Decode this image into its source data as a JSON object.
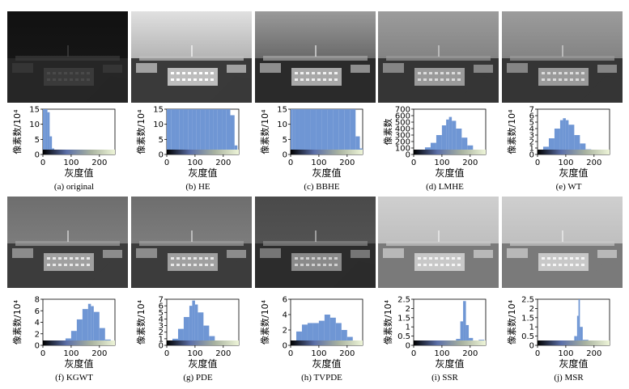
{
  "common": {
    "x_label": "灰度值",
    "x_ticks": [
      0,
      100,
      200
    ],
    "x_range": [
      0,
      255
    ],
    "bar_color": "#6f96d4",
    "gradient": [
      "#000000",
      "#5b6fa8",
      "#a9b3a0",
      "#eef5d8"
    ]
  },
  "panels": [
    {
      "id": "a",
      "caption": "(a) original",
      "ylabel": "像素数/10⁴",
      "ymax": 15,
      "yticks": [
        0,
        5,
        10,
        15
      ],
      "image_style": "dark",
      "chart_data": {
        "type": "histogram",
        "method": "original",
        "bins_x": [
          0,
          8,
          16,
          24,
          32,
          40,
          48,
          56,
          64
        ],
        "values": [
          15,
          15,
          14,
          6,
          2,
          0.8,
          0.5,
          0.3,
          0.2
        ]
      }
    },
    {
      "id": "b",
      "caption": "(b) HE",
      "ylabel": "像素数/10⁴",
      "ymax": 15,
      "yticks": [
        0,
        5,
        10,
        15
      ],
      "image_style": "he",
      "chart_data": {
        "type": "histogram",
        "method": "HE",
        "bins_x": [
          0,
          15,
          30,
          45,
          60,
          75,
          90,
          105,
          120,
          135,
          150,
          165,
          180,
          195,
          210,
          225,
          240,
          250
        ],
        "values": [
          15,
          15,
          15,
          15,
          15,
          15,
          15,
          15,
          15,
          15,
          15,
          15,
          15,
          15,
          15,
          13,
          3,
          1
        ]
      }
    },
    {
      "id": "c",
      "caption": "(c) BBHE",
      "ylabel": "像素数/10⁴",
      "ymax": 15,
      "yticks": [
        0,
        5,
        10,
        15
      ],
      "image_style": "bbhe",
      "chart_data": {
        "type": "histogram",
        "method": "BBHE",
        "bins_x": [
          0,
          8,
          16,
          30,
          50,
          70,
          90,
          110,
          130,
          150,
          170,
          190,
          210,
          230,
          245
        ],
        "values": [
          15,
          15,
          15,
          15,
          15,
          15,
          15,
          15,
          15,
          15,
          15,
          15,
          15,
          6,
          2
        ]
      }
    },
    {
      "id": "d",
      "caption": "(d) LMHE",
      "ylabel": "像素数",
      "ymax": 700,
      "yticks": [
        0,
        100,
        200,
        300,
        400,
        500,
        600,
        700
      ],
      "image_style": "noisy",
      "chart_data": {
        "type": "histogram",
        "method": "LMHE",
        "bins_x": [
          0,
          20,
          40,
          60,
          80,
          100,
          115,
          125,
          135,
          150,
          170,
          190,
          210,
          230,
          250
        ],
        "values": [
          40,
          70,
          110,
          180,
          300,
          450,
          540,
          580,
          520,
          400,
          260,
          140,
          70,
          30,
          10
        ]
      }
    },
    {
      "id": "e",
      "caption": "(e) WT",
      "ylabel": "像素数/10⁴",
      "ymax": 7,
      "yticks": [
        0,
        1,
        2,
        3,
        4,
        5,
        6,
        7
      ],
      "image_style": "noisy",
      "chart_data": {
        "type": "histogram",
        "method": "WT",
        "bins_x": [
          0,
          20,
          40,
          60,
          80,
          90,
          100,
          110,
          130,
          150,
          170,
          190,
          210,
          230,
          250
        ],
        "values": [
          0.5,
          1.2,
          2.5,
          4.0,
          5.3,
          5.6,
          5.3,
          4.6,
          3.0,
          1.7,
          0.8,
          0.3,
          0.1,
          0.05,
          0.02
        ]
      }
    },
    {
      "id": "f",
      "caption": "(f)  KGWT",
      "ylabel": "像素数/10⁴",
      "ymax": 8,
      "yticks": [
        0,
        2,
        4,
        6,
        8
      ],
      "image_style": "gray",
      "chart_data": {
        "type": "histogram",
        "method": "KGWT",
        "bins_x": [
          0,
          40,
          80,
          100,
          120,
          140,
          160,
          170,
          180,
          200,
          220,
          240,
          250
        ],
        "values": [
          0.05,
          0.3,
          1.2,
          2.5,
          4.5,
          6.3,
          7.2,
          6.8,
          5.8,
          3.0,
          1.0,
          0.2,
          0.05
        ]
      }
    },
    {
      "id": "g",
      "caption": "(g) PDE",
      "ylabel": "像素数/10⁴",
      "ymax": 7,
      "yticks": [
        0,
        1,
        2,
        3,
        4,
        5,
        6,
        7
      ],
      "image_style": "gray",
      "chart_data": {
        "type": "histogram",
        "method": "PDE",
        "bins_x": [
          0,
          20,
          40,
          60,
          80,
          90,
          100,
          110,
          130,
          150,
          170,
          200,
          230,
          250
        ],
        "values": [
          0.3,
          1.0,
          2.5,
          4.3,
          6.0,
          6.8,
          6.2,
          5.0,
          3.0,
          1.4,
          0.6,
          0.2,
          0.1,
          0.5
        ]
      }
    },
    {
      "id": "h",
      "caption": "(h) TVPDE",
      "ylabel": "像素数/10⁴",
      "ymax": 6,
      "yticks": [
        0,
        2,
        4,
        6
      ],
      "image_style": "darkgray",
      "chart_data": {
        "type": "histogram",
        "method": "TVPDE",
        "bins_x": [
          0,
          20,
          40,
          60,
          80,
          100,
          120,
          140,
          160,
          180,
          200,
          220,
          240,
          250
        ],
        "values": [
          0.3,
          1.8,
          2.7,
          2.9,
          2.9,
          3.2,
          4.0,
          3.6,
          2.9,
          2.0,
          1.1,
          0.4,
          0.1,
          0.05
        ]
      }
    },
    {
      "id": "i",
      "caption": "(i) SSR",
      "ylabel": "像素数/10⁴",
      "ymax": 2.5,
      "yticks": [
        0,
        0.5,
        1,
        1.5,
        2,
        2.5
      ],
      "image_style": "light",
      "chart_data": {
        "type": "histogram",
        "method": "SSR",
        "bins_x": [
          0,
          40,
          80,
          120,
          150,
          165,
          175,
          185,
          195,
          210,
          230,
          250
        ],
        "values": [
          0.02,
          0.05,
          0.08,
          0.15,
          0.35,
          1.3,
          2.4,
          1.1,
          0.4,
          0.2,
          0.3,
          0.1
        ]
      }
    },
    {
      "id": "j",
      "caption": "(j) MSR",
      "ylabel": "像素数/10⁴",
      "ymax": 2.5,
      "yticks": [
        0,
        0.5,
        1,
        1.5,
        2,
        2.5
      ],
      "image_style": "light",
      "chart_data": {
        "type": "histogram",
        "method": "MSR",
        "bins_x": [
          0,
          40,
          80,
          110,
          130,
          140,
          145,
          150,
          160,
          180,
          210,
          250
        ],
        "values": [
          0.02,
          0.06,
          0.1,
          0.2,
          0.5,
          1.6,
          2.5,
          1.0,
          0.3,
          0.1,
          0.05,
          0.02
        ]
      }
    }
  ]
}
